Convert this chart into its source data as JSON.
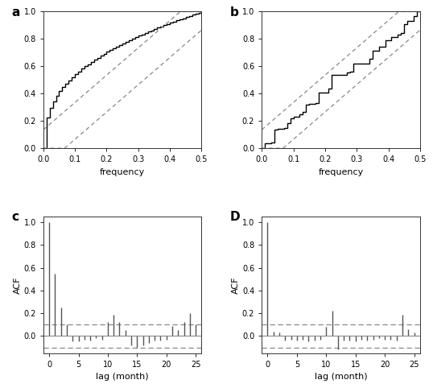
{
  "panel_labels": [
    "a",
    "b",
    "c",
    "D"
  ],
  "periodogram_xlim": [
    0.0,
    0.5
  ],
  "periodogram_ylim": [
    0.0,
    1.0
  ],
  "periodogram_xticks": [
    0.0,
    0.1,
    0.2,
    0.3,
    0.4,
    0.5
  ],
  "periodogram_yticks": [
    0.0,
    0.2,
    0.4,
    0.6,
    0.8,
    1.0
  ],
  "periodogram_yticklabels": [
    "0.0",
    "0.2",
    "0.4",
    "0.6",
    "0.8",
    "1.0"
  ],
  "periodogram_xticklabels": [
    "0.0",
    "0.1",
    "0.2",
    "0.3",
    "0.4",
    "0.5"
  ],
  "acf_xlim": [
    -1.0,
    26.0
  ],
  "acf_ylim": [
    -0.15,
    1.05
  ],
  "acf_yticks": [
    0.0,
    0.2,
    0.4,
    0.6,
    0.8,
    1.0
  ],
  "acf_xticks": [
    0,
    5,
    10,
    15,
    20,
    25
  ],
  "acf_conf": 0.1,
  "xlabel_periodogram": "frequency",
  "xlabel_acf": "lag (month)",
  "ylabel_acf": "ACF",
  "acf_left": [
    1.0,
    0.55,
    0.25,
    0.1,
    -0.05,
    -0.05,
    -0.03,
    -0.04,
    -0.02,
    -0.03,
    0.12,
    0.19,
    0.12,
    0.05,
    -0.08,
    -0.1,
    -0.08,
    -0.06,
    -0.04,
    -0.04,
    -0.03,
    0.09,
    0.05,
    0.12,
    0.2,
    0.1
  ],
  "acf_right": [
    1.0,
    0.04,
    0.03,
    -0.04,
    -0.03,
    -0.04,
    -0.03,
    -0.05,
    -0.04,
    -0.03,
    0.08,
    0.22,
    -0.12,
    -0.04,
    -0.04,
    -0.05,
    -0.03,
    -0.04,
    -0.03,
    -0.02,
    -0.03,
    -0.03,
    -0.04,
    0.19,
    0.06,
    0.03
  ],
  "background_color": "#ffffff",
  "line_color": "#000000",
  "bar_color": "#555555",
  "dashed_color": "#888888",
  "axis_color": "#888888",
  "ks_bound": 0.135,
  "n_steps_perio": 50
}
